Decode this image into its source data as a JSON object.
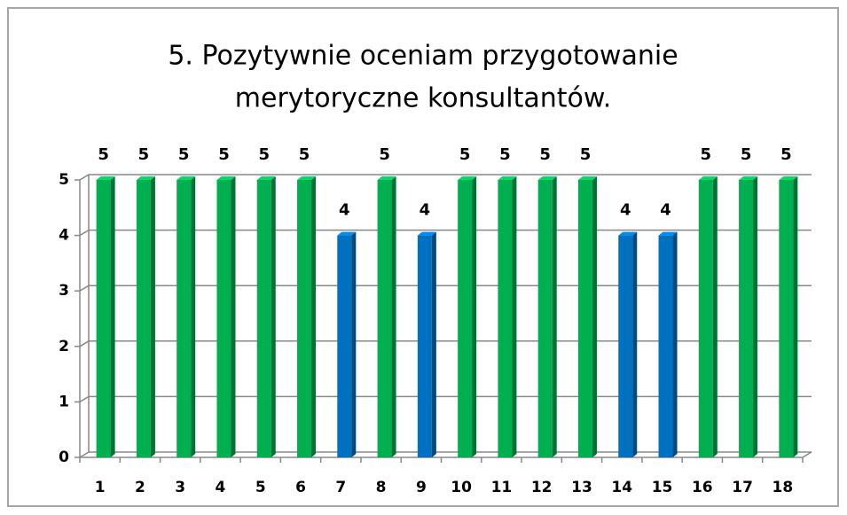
{
  "chart_data": {
    "type": "bar",
    "title": [
      "5. Pozytywnie oceniam przygotowanie",
      "merytoryczne konsultantów."
    ],
    "categories": [
      "1",
      "2",
      "3",
      "4",
      "5",
      "6",
      "7",
      "8",
      "9",
      "10",
      "11",
      "12",
      "13",
      "14",
      "15",
      "16",
      "17",
      "18"
    ],
    "values": [
      5,
      5,
      5,
      5,
      5,
      5,
      4,
      5,
      4,
      5,
      5,
      5,
      5,
      4,
      4,
      5,
      5,
      5
    ],
    "colors": [
      "#00b050",
      "#00b050",
      "#00b050",
      "#00b050",
      "#00b050",
      "#00b050",
      "#0070c0",
      "#00b050",
      "#0070c0",
      "#00b050",
      "#00b050",
      "#00b050",
      "#00b050",
      "#0070c0",
      "#0070c0",
      "#00b050",
      "#00b050",
      "#00b050"
    ],
    "ylim": [
      0,
      5
    ],
    "yticks": [
      0,
      1,
      2,
      3,
      4,
      5
    ],
    "grid": true
  }
}
